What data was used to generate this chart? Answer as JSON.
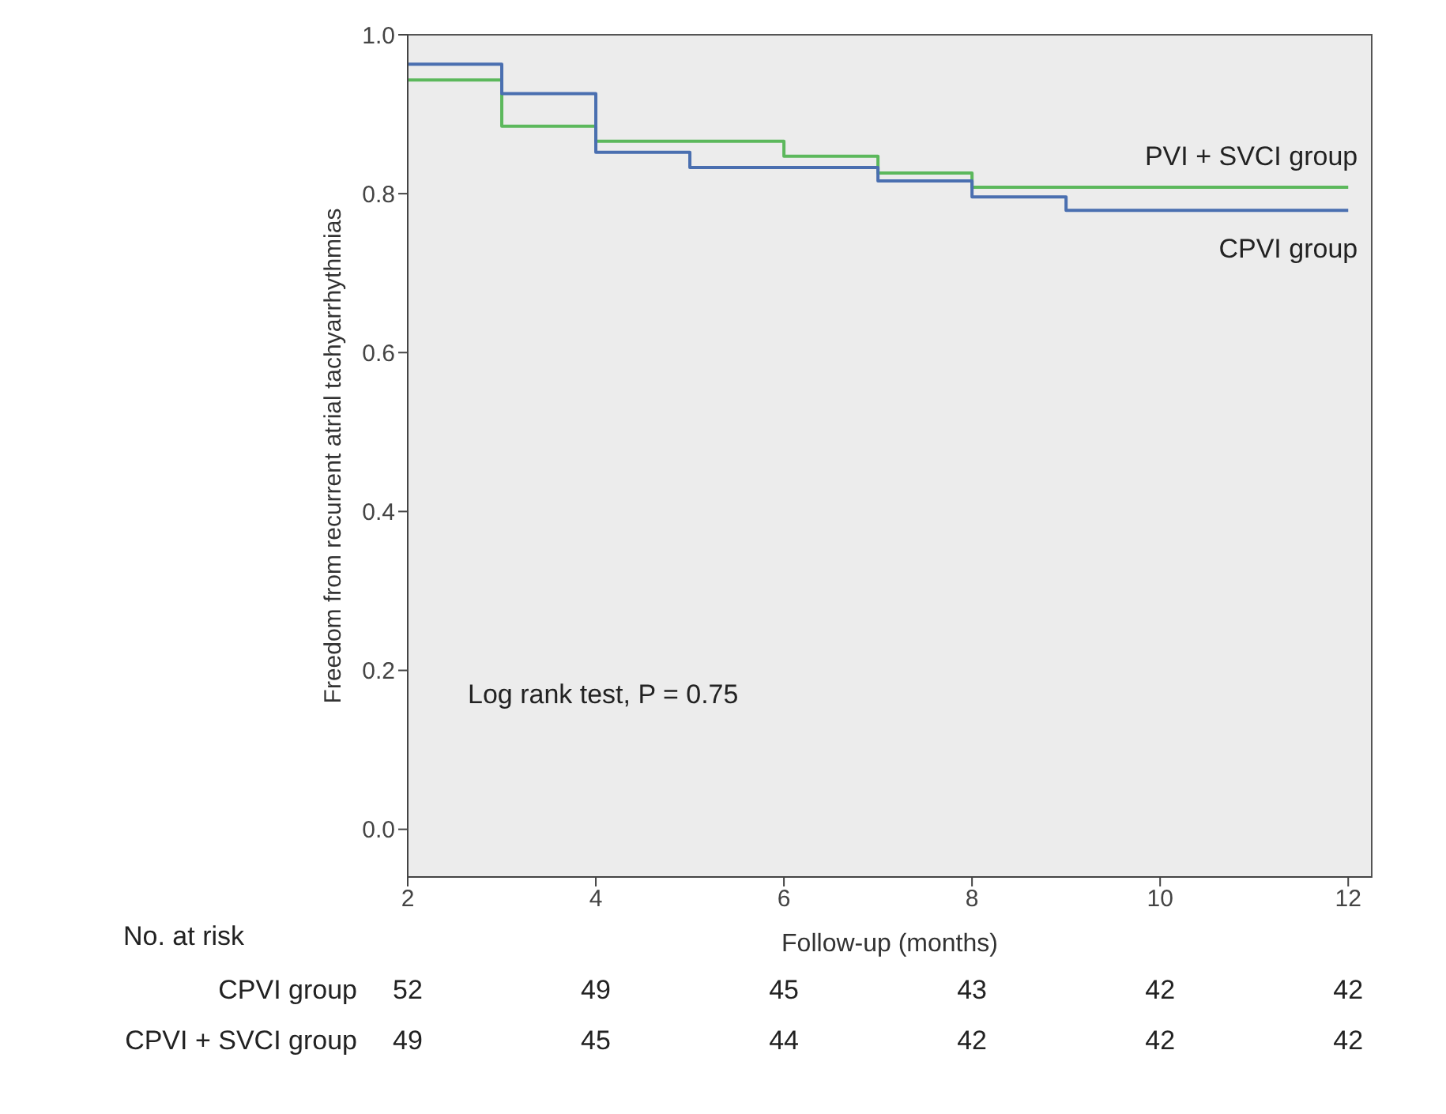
{
  "chart_data": {
    "type": "step",
    "xlabel": "Follow-up (months)",
    "ylabel": "Freedom from recurrent atrial tachyarrhythmias",
    "xlim": [
      2,
      12.25
    ],
    "xticks": [
      2,
      4,
      6,
      8,
      10,
      12
    ],
    "ylim": [
      -0.06,
      1.0
    ],
    "yticks": [
      {
        "value": 0,
        "label": "0.0"
      },
      {
        "value": 0.2,
        "label": "0.2"
      },
      {
        "value": 0.4,
        "label": "0.4"
      },
      {
        "value": 0.6,
        "label": "0.6"
      },
      {
        "value": 0.8,
        "label": "0.8"
      },
      {
        "value": 1,
        "label": "1.0"
      }
    ],
    "grid": false,
    "legend": false,
    "marker": "none",
    "line_style": "solid",
    "series": [
      {
        "name": "PVI + SVCI group",
        "color": "#5cb85c",
        "x": [
          2,
          3,
          4,
          6,
          7,
          8,
          12
        ],
        "values": [
          0.943,
          0.885,
          0.866,
          0.847,
          0.826,
          0.808,
          0.808
        ]
      },
      {
        "name": "CPVI group",
        "color": "#4a6fb0",
        "x": [
          2,
          3,
          4,
          5,
          7,
          8,
          9,
          12
        ],
        "values": [
          0.963,
          0.926,
          0.852,
          0.833,
          0.816,
          0.796,
          0.779,
          0.779
        ]
      }
    ],
    "annotations": [
      "Log rank test, P = 0.75",
      "No. at risk",
      "CPVI group",
      "52",
      "49",
      "45",
      "43",
      "42",
      "42",
      "CPVI + SVCI group",
      "49",
      "45",
      "44",
      "42",
      "42",
      "42"
    ]
  }
}
